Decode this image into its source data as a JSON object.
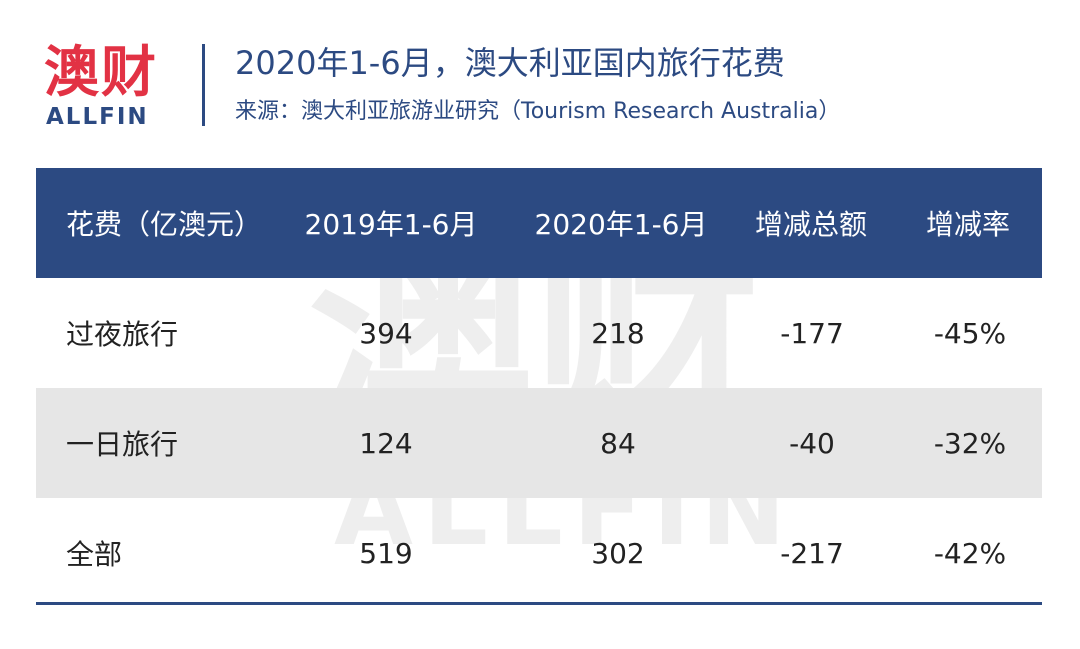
{
  "logo": {
    "cn": "澳财",
    "en": "ALLFIN"
  },
  "header": {
    "title": "2020年1-6月，澳大利亚国内旅行花费",
    "source": "来源：澳大利亚旅游业研究（Tourism Research Australia）"
  },
  "watermark": {
    "cn": "澳财",
    "en": "ALLFIN"
  },
  "table": {
    "columns": [
      "花费（亿澳元）",
      "2019年1-6月",
      "2020年1-6月",
      "增减总额",
      "增减率"
    ],
    "rows": [
      [
        "过夜旅行",
        "394",
        "218",
        "-177",
        "-45%"
      ],
      [
        "一日旅行",
        "124",
        "84",
        "-40",
        "-32%"
      ],
      [
        "全部",
        "519",
        "302",
        "-217",
        "-42%"
      ]
    ]
  },
  "colors": {
    "brand_red": "#e23244",
    "brand_blue": "#2c4a82",
    "row_shade": "#e6e6e6"
  }
}
